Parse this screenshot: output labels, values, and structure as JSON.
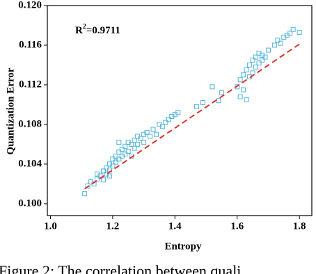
{
  "chart_data": {
    "type": "scatter",
    "xlabel": "Entropy",
    "ylabel": "Quantization Error",
    "annotation": {
      "base": "R",
      "sup": "2",
      "rest": "=0.9711"
    },
    "caption": "Figure 2:  The correlation between quali",
    "xlim": [
      0.99,
      1.84
    ],
    "ylim": [
      0.0988,
      0.12
    ],
    "xticks": [
      {
        "value": 1.0,
        "label": "1.0"
      },
      {
        "value": 1.2,
        "label": "1.2"
      },
      {
        "value": 1.4,
        "label": "1.4"
      },
      {
        "value": 1.6,
        "label": "1.6"
      },
      {
        "value": 1.8,
        "label": "1.8"
      }
    ],
    "yticks": [
      {
        "value": 0.1,
        "label": "0.100"
      },
      {
        "value": 0.104,
        "label": "0.104"
      },
      {
        "value": 0.108,
        "label": "0.108"
      },
      {
        "value": 0.112,
        "label": "0.112"
      },
      {
        "value": 0.116,
        "label": "0.116"
      },
      {
        "value": 0.12,
        "label": "0.120"
      }
    ],
    "series": [
      {
        "type": "scatter",
        "marker": "square-open",
        "color": "#4fb3d9",
        "x": [
          1.11,
          1.12,
          1.13,
          1.14,
          1.15,
          1.15,
          1.16,
          1.17,
          1.17,
          1.18,
          1.18,
          1.19,
          1.19,
          1.2,
          1.2,
          1.21,
          1.21,
          1.22,
          1.22,
          1.23,
          1.23,
          1.24,
          1.24,
          1.25,
          1.25,
          1.26,
          1.27,
          1.27,
          1.28,
          1.28,
          1.29,
          1.3,
          1.3,
          1.31,
          1.32,
          1.33,
          1.34,
          1.35,
          1.36,
          1.37,
          1.38,
          1.39,
          1.4,
          1.41,
          1.26,
          1.22,
          1.19,
          1.47,
          1.49,
          1.52,
          1.54,
          1.55,
          1.6,
          1.61,
          1.61,
          1.62,
          1.62,
          1.63,
          1.63,
          1.64,
          1.64,
          1.65,
          1.65,
          1.66,
          1.66,
          1.67,
          1.67,
          1.68,
          1.68,
          1.69,
          1.7,
          1.72,
          1.73,
          1.74,
          1.75,
          1.76,
          1.77,
          1.78,
          1.8
        ],
        "values": [
          0.101,
          0.1018,
          0.1022,
          0.102,
          0.1025,
          0.103,
          0.1028,
          0.1033,
          0.1024,
          0.1036,
          0.103,
          0.104,
          0.1034,
          0.1045,
          0.1038,
          0.1048,
          0.1042,
          0.1052,
          0.1045,
          0.1055,
          0.1048,
          0.1058,
          0.105,
          0.1062,
          0.1053,
          0.106,
          0.1064,
          0.1056,
          0.1068,
          0.106,
          0.1066,
          0.107,
          0.1062,
          0.1072,
          0.1068,
          0.1075,
          0.107,
          0.108,
          0.1078,
          0.1082,
          0.1085,
          0.1088,
          0.109,
          0.1092,
          0.1048,
          0.1062,
          0.1028,
          0.1098,
          0.1102,
          0.1118,
          0.1104,
          0.1112,
          0.1118,
          0.1125,
          0.1108,
          0.113,
          0.1115,
          0.1105,
          0.1135,
          0.1128,
          0.114,
          0.1132,
          0.1145,
          0.1138,
          0.1148,
          0.1142,
          0.1152,
          0.1145,
          0.115,
          0.1148,
          0.1155,
          0.116,
          0.1165,
          0.1162,
          0.1168,
          0.117,
          0.1172,
          0.1176,
          0.1173
        ]
      },
      {
        "type": "line",
        "dash": true,
        "color": "#e0302a",
        "x": [
          1.11,
          1.8
        ],
        "values": [
          0.1015,
          0.1161
        ]
      }
    ]
  }
}
